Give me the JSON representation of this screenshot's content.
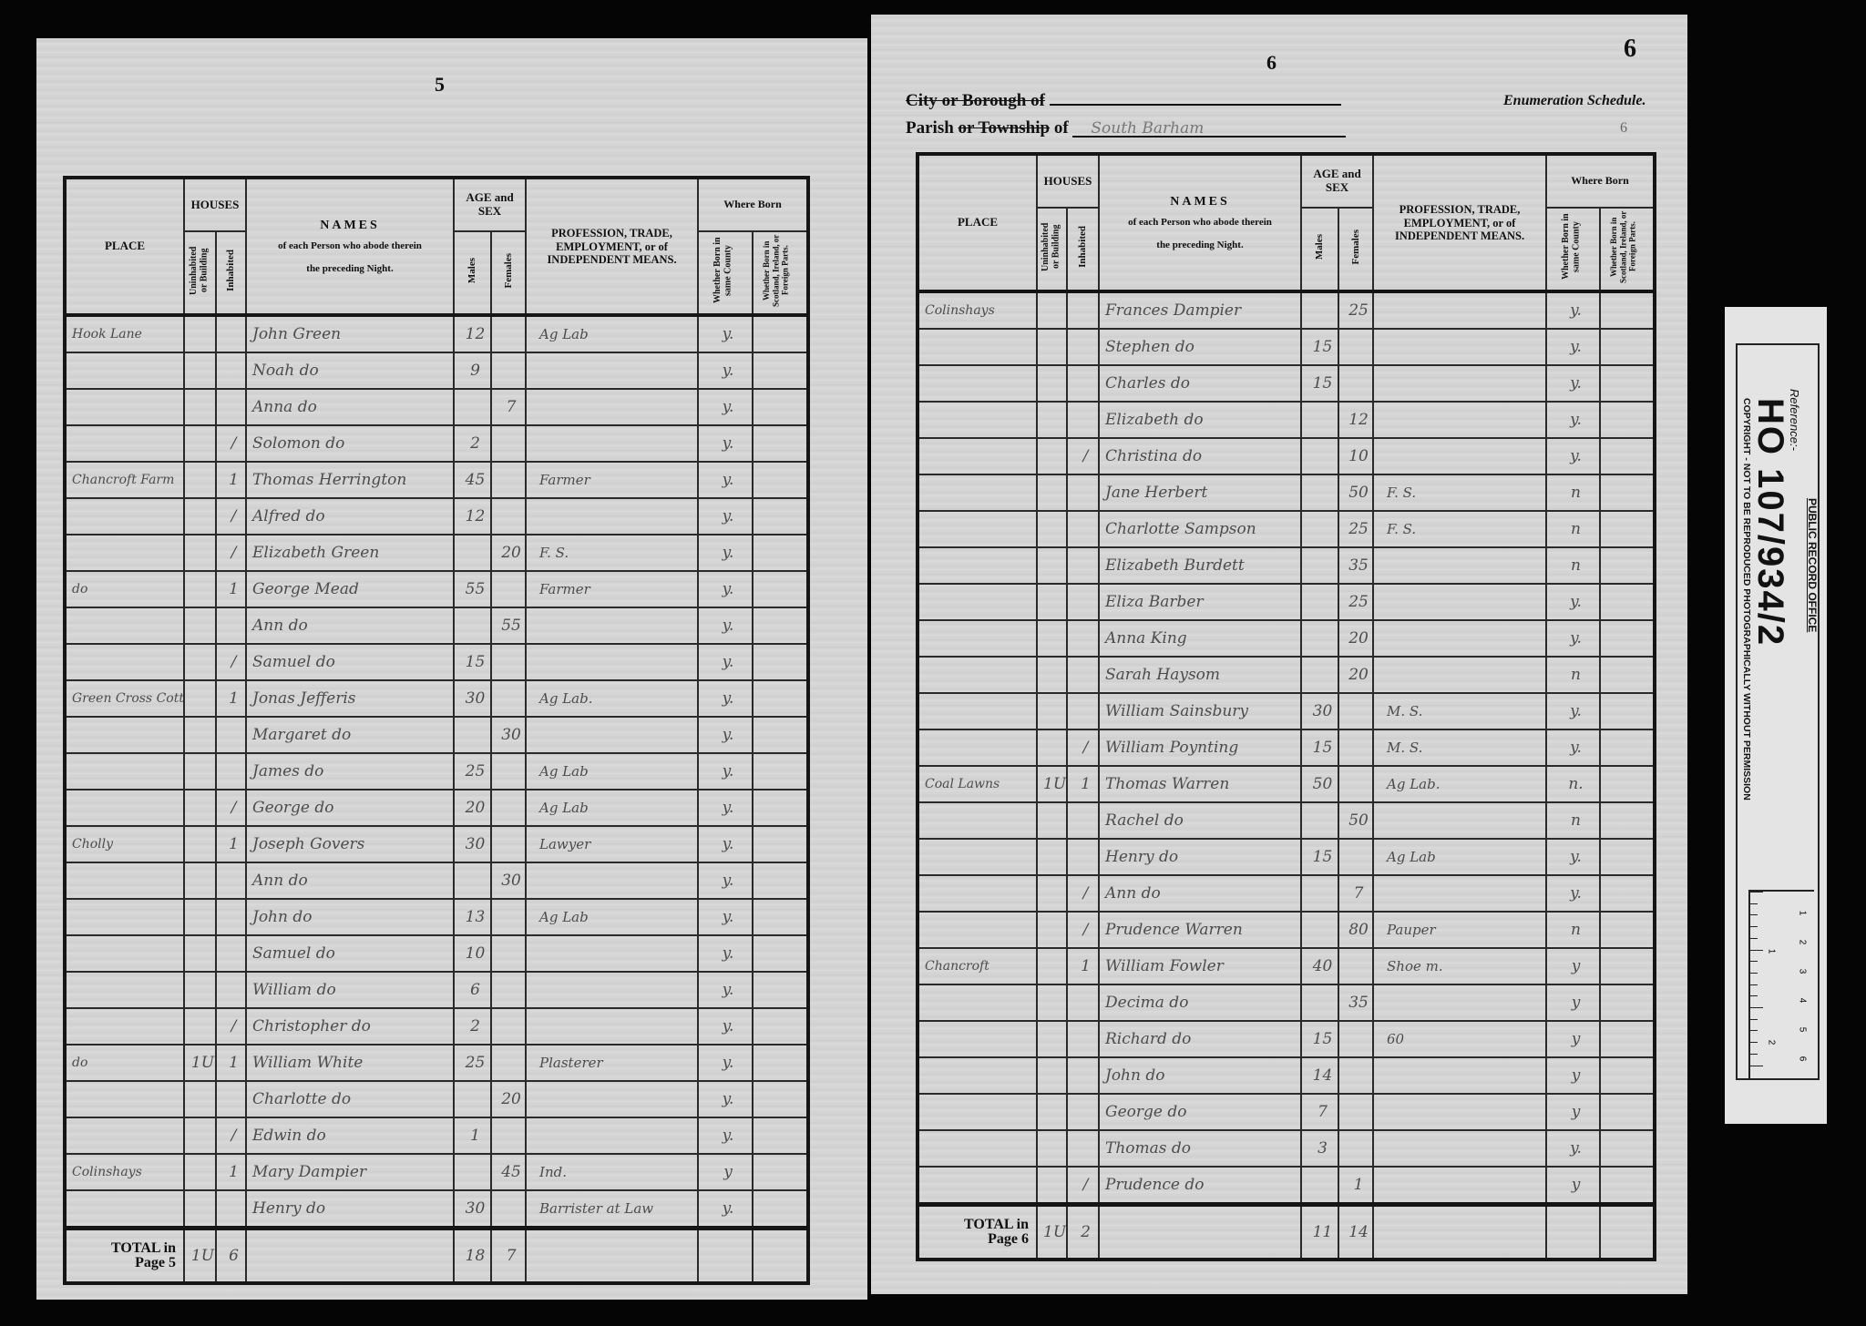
{
  "left_page": {
    "page_number": "5",
    "headers": {
      "place": "PLACE",
      "houses": "HOUSES",
      "uninhabited": "Uninhabited or Building",
      "inhabited": "Inhabited",
      "names_title": "NAMES",
      "names_sub1": "of each Person who abode therein",
      "names_sub2": "the preceding Night.",
      "age_sex": "AGE and SEX",
      "males": "Males",
      "females": "Females",
      "profession": "PROFESSION, TRADE, EMPLOYMENT, or of INDEPENDENT MEANS.",
      "where_born": "Where Born",
      "born_county": "Whether Born in same County",
      "born_elsewhere": "Whether Born in Scotland, Ireland, or Foreign Parts."
    },
    "rows": [
      {
        "place": "Hook Lane",
        "u": "",
        "i": "",
        "name": "John Green",
        "m": "12",
        "f": "",
        "occ": "Ag Lab",
        "born": "y."
      },
      {
        "place": "",
        "u": "",
        "i": "",
        "name": "Noah do",
        "m": "9",
        "f": "",
        "occ": "",
        "born": "y."
      },
      {
        "place": "",
        "u": "",
        "i": "",
        "name": "Anna do",
        "m": "",
        "f": "7",
        "occ": "",
        "born": "y."
      },
      {
        "place": "",
        "u": "",
        "i": "/",
        "name": "Solomon do",
        "m": "2",
        "f": "",
        "occ": "",
        "born": "y."
      },
      {
        "place": "Chancroft Farm",
        "u": "",
        "i": "1",
        "name": "Thomas Herrington",
        "m": "45",
        "f": "",
        "occ": "Farmer",
        "born": "y."
      },
      {
        "place": "",
        "u": "",
        "i": "/",
        "name": "Alfred do",
        "m": "12",
        "f": "",
        "occ": "",
        "born": "y."
      },
      {
        "place": "",
        "u": "",
        "i": "/",
        "name": "Elizabeth Green",
        "m": "",
        "f": "20",
        "occ": "F. S.",
        "born": "y."
      },
      {
        "place": "do",
        "u": "",
        "i": "1",
        "name": "George Mead",
        "m": "55",
        "f": "",
        "occ": "Farmer",
        "born": "y."
      },
      {
        "place": "",
        "u": "",
        "i": "",
        "name": "Ann do",
        "m": "",
        "f": "55",
        "occ": "",
        "born": "y."
      },
      {
        "place": "",
        "u": "",
        "i": "/",
        "name": "Samuel do",
        "m": "15",
        "f": "",
        "occ": "",
        "born": "y."
      },
      {
        "place": "Green Cross Cottage",
        "u": "",
        "i": "1",
        "name": "Jonas Jefferis",
        "m": "30",
        "f": "",
        "occ": "Ag Lab.",
        "born": "y."
      },
      {
        "place": "",
        "u": "",
        "i": "",
        "name": "Margaret do",
        "m": "",
        "f": "30",
        "occ": "",
        "born": "y."
      },
      {
        "place": "",
        "u": "",
        "i": "",
        "name": "James do",
        "m": "25",
        "f": "",
        "occ": "Ag Lab",
        "born": "y."
      },
      {
        "place": "",
        "u": "",
        "i": "/",
        "name": "George do",
        "m": "20",
        "f": "",
        "occ": "Ag Lab",
        "born": "y."
      },
      {
        "place": "Cholly",
        "u": "",
        "i": "1",
        "name": "Joseph Govers",
        "m": "30",
        "f": "",
        "occ": "Lawyer",
        "born": "y."
      },
      {
        "place": "",
        "u": "",
        "i": "",
        "name": "Ann do",
        "m": "",
        "f": "30",
        "occ": "",
        "born": "y."
      },
      {
        "place": "",
        "u": "",
        "i": "",
        "name": "John do",
        "m": "13",
        "f": "",
        "occ": "Ag Lab",
        "born": "y."
      },
      {
        "place": "",
        "u": "",
        "i": "",
        "name": "Samuel do",
        "m": "10",
        "f": "",
        "occ": "",
        "born": "y."
      },
      {
        "place": "",
        "u": "",
        "i": "",
        "name": "William do",
        "m": "6",
        "f": "",
        "occ": "",
        "born": "y."
      },
      {
        "place": "",
        "u": "",
        "i": "/",
        "name": "Christopher do",
        "m": "2",
        "f": "",
        "occ": "",
        "born": "y."
      },
      {
        "place": "do",
        "u": "1U",
        "i": "1",
        "name": "William White",
        "m": "25",
        "f": "",
        "occ": "Plasterer",
        "born": "y."
      },
      {
        "place": "",
        "u": "",
        "i": "",
        "name": "Charlotte do",
        "m": "",
        "f": "20",
        "occ": "",
        "born": "y."
      },
      {
        "place": "",
        "u": "",
        "i": "/",
        "name": "Edwin do",
        "m": "1",
        "f": "",
        "occ": "",
        "born": "y."
      },
      {
        "place": "Colinshays",
        "u": "",
        "i": "1",
        "name": "Mary Dampier",
        "m": "",
        "f": "45",
        "occ": "Ind.",
        "born": "y"
      },
      {
        "place": "",
        "u": "",
        "i": "",
        "name": "Henry do",
        "m": "30",
        "f": "",
        "occ": "Barrister at Law",
        "born": "y."
      }
    ],
    "total": {
      "label1": "TOTAL in",
      "label2": "Page 5",
      "u": "1U",
      "i": "6",
      "m": "18",
      "f": "7"
    }
  },
  "right_page": {
    "page_number": "6",
    "corner_number": "6",
    "small_mark": "6",
    "city_label": "City or Borough of",
    "city_value": "",
    "parish_label_a": "Parish",
    "parish_label_b": "or Township",
    "parish_label_c": "of",
    "parish_value": "South Barham",
    "schedule_title": "Enumeration Schedule.",
    "rows": [
      {
        "place": "Colinshays",
        "u": "",
        "i": "",
        "name": "Frances Dampier",
        "m": "",
        "f": "25",
        "occ": "",
        "born": "y."
      },
      {
        "place": "",
        "u": "",
        "i": "",
        "name": "Stephen do",
        "m": "15",
        "f": "",
        "occ": "",
        "born": "y."
      },
      {
        "place": "",
        "u": "",
        "i": "",
        "name": "Charles do",
        "m": "15",
        "f": "",
        "occ": "",
        "born": "y."
      },
      {
        "place": "",
        "u": "",
        "i": "",
        "name": "Elizabeth do",
        "m": "",
        "f": "12",
        "occ": "",
        "born": "y."
      },
      {
        "place": "",
        "u": "",
        "i": "/",
        "name": "Christina do",
        "m": "",
        "f": "10",
        "occ": "",
        "born": "y."
      },
      {
        "place": "",
        "u": "",
        "i": "",
        "name": "Jane Herbert",
        "m": "",
        "f": "50",
        "occ": "F. S.",
        "born": "n"
      },
      {
        "place": "",
        "u": "",
        "i": "",
        "name": "Charlotte Sampson",
        "m": "",
        "f": "25",
        "occ": "F. S.",
        "born": "n"
      },
      {
        "place": "",
        "u": "",
        "i": "",
        "name": "Elizabeth Burdett",
        "m": "",
        "f": "35",
        "occ": "",
        "born": "n"
      },
      {
        "place": "",
        "u": "",
        "i": "",
        "name": "Eliza Barber",
        "m": "",
        "f": "25",
        "occ": "",
        "born": "y."
      },
      {
        "place": "",
        "u": "",
        "i": "",
        "name": "Anna King",
        "m": "",
        "f": "20",
        "occ": "",
        "born": "y."
      },
      {
        "place": "",
        "u": "",
        "i": "",
        "name": "Sarah Haysom",
        "m": "",
        "f": "20",
        "occ": "",
        "born": "n"
      },
      {
        "place": "",
        "u": "",
        "i": "",
        "name": "William Sainsbury",
        "m": "30",
        "f": "",
        "occ": "M. S.",
        "born": "y."
      },
      {
        "place": "",
        "u": "",
        "i": "/",
        "name": "William Poynting",
        "m": "15",
        "f": "",
        "occ": "M. S.",
        "born": "y."
      },
      {
        "place": "Coal Lawns",
        "u": "1U",
        "i": "1",
        "name": "Thomas Warren",
        "m": "50",
        "f": "",
        "occ": "Ag Lab.",
        "born": "n."
      },
      {
        "place": "",
        "u": "",
        "i": "",
        "name": "Rachel do",
        "m": "",
        "f": "50",
        "occ": "",
        "born": "n"
      },
      {
        "place": "",
        "u": "",
        "i": "",
        "name": "Henry do",
        "m": "15",
        "f": "",
        "occ": "Ag Lab",
        "born": "y."
      },
      {
        "place": "",
        "u": "",
        "i": "/",
        "name": "Ann do",
        "m": "",
        "f": "7",
        "occ": "",
        "born": "y."
      },
      {
        "place": "",
        "u": "",
        "i": "/",
        "name": "Prudence Warren",
        "m": "",
        "f": "80",
        "occ": "Pauper",
        "born": "n"
      },
      {
        "place": "Chancroft",
        "u": "",
        "i": "1",
        "name": "William Fowler",
        "m": "40",
        "f": "",
        "occ": "Shoe m.",
        "born": "y"
      },
      {
        "place": "",
        "u": "",
        "i": "",
        "name": "Decima do",
        "m": "",
        "f": "35",
        "occ": "",
        "born": "y"
      },
      {
        "place": "",
        "u": "",
        "i": "",
        "name": "Richard do",
        "m": "15",
        "f": "",
        "occ": "60",
        "born": "y"
      },
      {
        "place": "",
        "u": "",
        "i": "",
        "name": "John do",
        "m": "14",
        "f": "",
        "occ": "",
        "born": "y"
      },
      {
        "place": "",
        "u": "",
        "i": "",
        "name": "George do",
        "m": "7",
        "f": "",
        "occ": "",
        "born": "y"
      },
      {
        "place": "",
        "u": "",
        "i": "",
        "name": "Thomas do",
        "m": "3",
        "f": "",
        "occ": "",
        "born": "y."
      },
      {
        "place": "",
        "u": "",
        "i": "/",
        "name": "Prudence do",
        "m": "",
        "f": "1",
        "occ": "",
        "born": "y"
      }
    ],
    "total": {
      "label1": "TOTAL in",
      "label2": "Page 6",
      "u": "1U",
      "i": "2",
      "m": "11",
      "f": "14"
    }
  },
  "reference_slip": {
    "reference_label": "Reference:-",
    "reference": "HO 107/934/2",
    "office": "PUBLIC RECORD OFFICE",
    "copyright": "COPYRIGHT - NOT TO BE REPRODUCED PHOTOGRAPHICALLY WITHOUT PERMISSION",
    "scale_cm": [
      "1",
      "2",
      "3",
      "4",
      "5",
      "6"
    ],
    "scale_in": [
      "1",
      "2"
    ]
  },
  "colors": {
    "background": "#050505",
    "paper": "#d4d4d4",
    "ink_print": "#111111",
    "ink_hand": "#4c4c4c"
  }
}
